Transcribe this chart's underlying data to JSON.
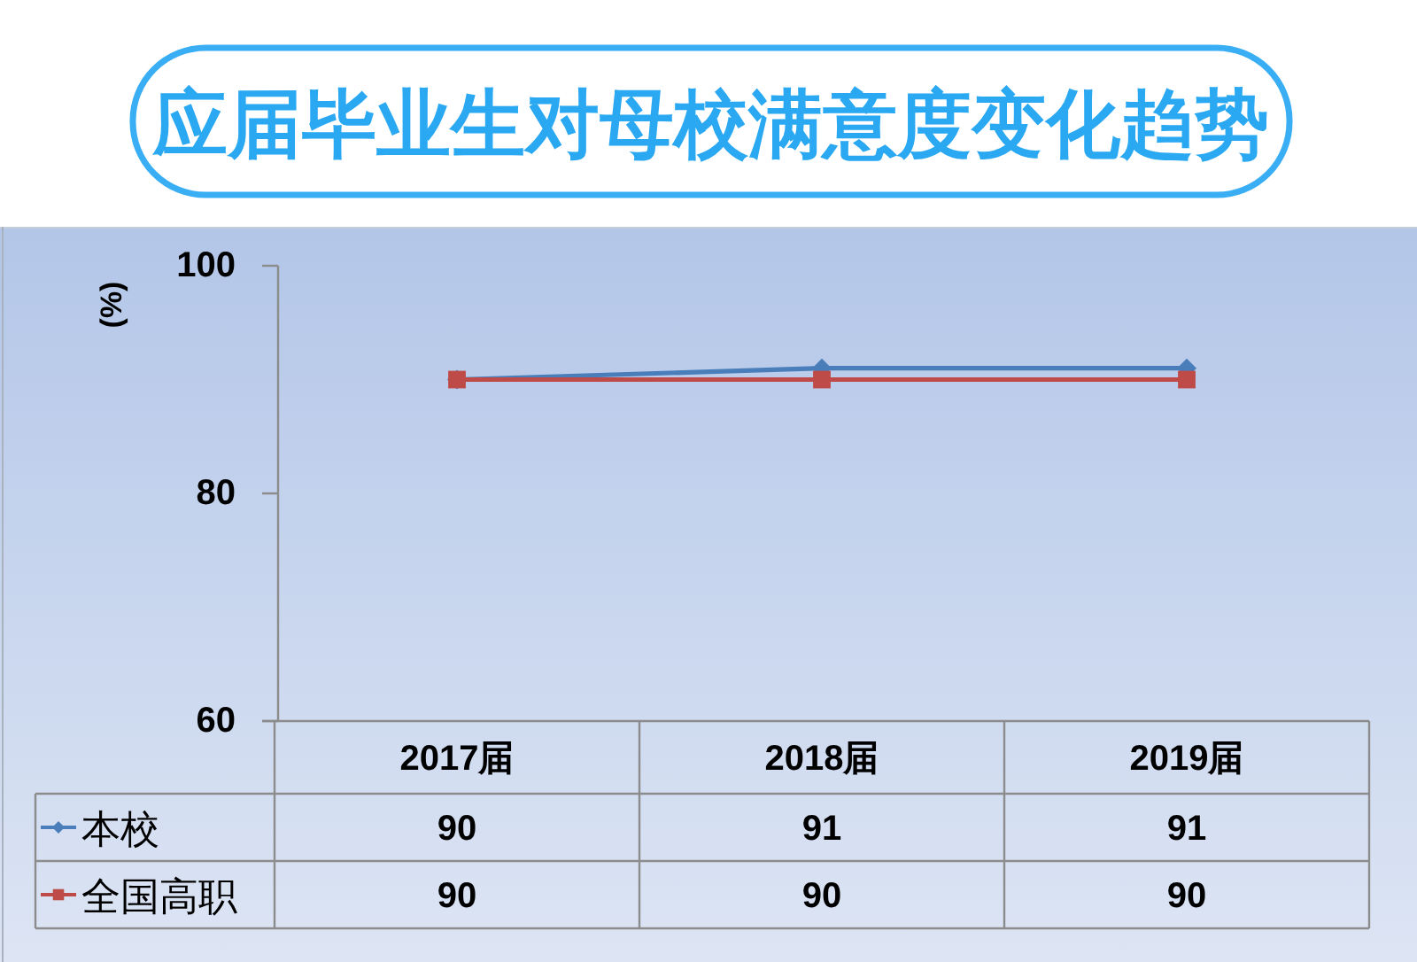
{
  "chart_data": {
    "type": "line",
    "title": "应届毕业生对母校满意度变化趋势",
    "ylabel": "(%)",
    "categories": [
      "2017届",
      "2018届",
      "2019届"
    ],
    "series": [
      {
        "name": "本校",
        "color": "#4a7ebb",
        "marker": "diamond",
        "values": [
          90,
          91,
          91
        ]
      },
      {
        "name": "全国高职",
        "color": "#be4b48",
        "marker": "square",
        "values": [
          90,
          90,
          90
        ]
      }
    ],
    "ylim": [
      60,
      100
    ],
    "yticks": [
      60,
      80,
      100
    ],
    "data_labels": true,
    "legend": "bottom left"
  }
}
